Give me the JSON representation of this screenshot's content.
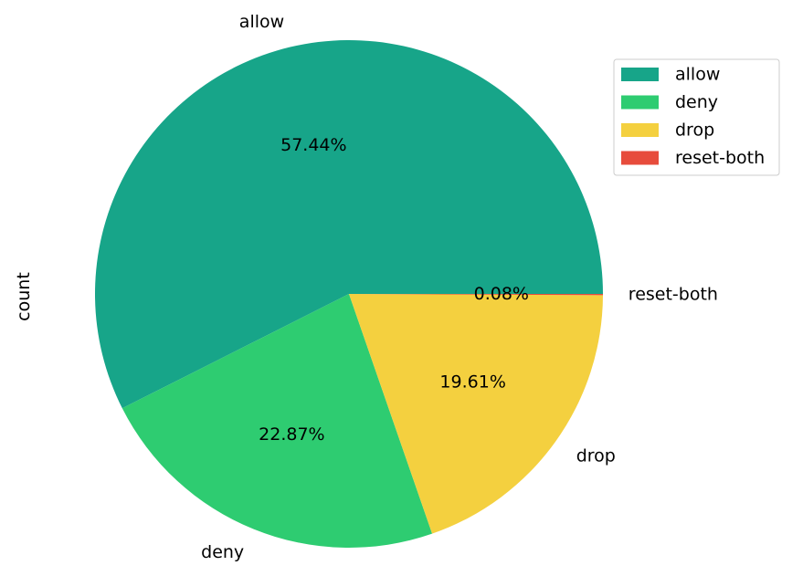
{
  "chart_data": {
    "type": "pie",
    "ylabel": "count",
    "categories": [
      "allow",
      "deny",
      "drop",
      "reset-both"
    ],
    "values": [
      57.44,
      22.87,
      19.61,
      0.08
    ],
    "pct_labels": [
      "57.44%",
      "22.87%",
      "19.61%",
      "0.08%"
    ],
    "colors": [
      "#17a589",
      "#2ecc71",
      "#f4d03f",
      "#e74c3c"
    ],
    "start_angle_deg": 0,
    "direction": "counterclockwise",
    "legend": {
      "placement": "top-right",
      "entries": [
        "allow",
        "deny",
        "drop",
        "reset-both"
      ]
    }
  }
}
